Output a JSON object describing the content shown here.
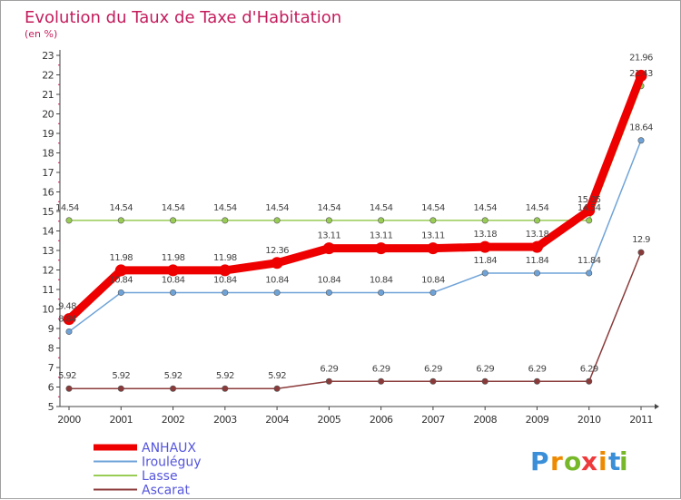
{
  "chart_data": {
    "type": "line",
    "title": "Evolution du Taux de Taxe d'Habitation",
    "subtitle": "(en %)",
    "xlabel": "",
    "ylabel": "",
    "ylim": [
      5,
      23
    ],
    "y_ticks": [
      "5",
      "6",
      "7",
      "8",
      "9",
      "10",
      "11",
      "12",
      "13",
      "14",
      "15",
      "16",
      "17",
      "18",
      "19",
      "20",
      "21",
      "22",
      "23"
    ],
    "categories": [
      "2000",
      "2001",
      "2002",
      "2003",
      "2004",
      "2005",
      "2006",
      "2007",
      "2008",
      "2009",
      "2010",
      "2011"
    ],
    "grid": false,
    "legend_position": "bottom-left",
    "series": [
      {
        "name": "ANHAUX",
        "color": "#ee0000",
        "values": [
          9.48,
          11.98,
          11.98,
          11.98,
          12.36,
          13.11,
          13.11,
          13.11,
          13.18,
          13.18,
          15.05,
          21.96
        ],
        "labels": [
          "9.48",
          "11.98",
          "11.98",
          "11.98",
          "12.36",
          "13.11",
          "13.11",
          "13.11",
          "13.18",
          "13.18",
          "15.05",
          "21.96"
        ]
      },
      {
        "name": "Irouléguy",
        "color": "#6fa3d8",
        "values": [
          8.84,
          10.84,
          10.84,
          10.84,
          10.84,
          10.84,
          10.84,
          10.84,
          11.84,
          11.84,
          11.84,
          18.64
        ],
        "labels": [
          "8.84",
          "10.84",
          "10.84",
          "10.84",
          "10.84",
          "10.84",
          "10.84",
          "10.84",
          "11.84",
          "11.84",
          "11.84",
          "18.64"
        ]
      },
      {
        "name": "Lasse",
        "color": "#99cc55",
        "values": [
          14.54,
          14.54,
          14.54,
          14.54,
          14.54,
          14.54,
          14.54,
          14.54,
          14.54,
          14.54,
          14.54,
          21.43
        ],
        "labels": [
          "14.54",
          "14.54",
          "14.54",
          "14.54",
          "14.54",
          "14.54",
          "14.54",
          "14.54",
          "14.54",
          "14.54",
          "14.54",
          "21.43"
        ]
      },
      {
        "name": "Ascarat",
        "color": "#8b3a3a",
        "values": [
          5.92,
          5.92,
          5.92,
          5.92,
          5.92,
          6.29,
          6.29,
          6.29,
          6.29,
          6.29,
          6.29,
          12.9
        ],
        "labels": [
          "5.92",
          "5.92",
          "5.92",
          "5.92",
          "5.92",
          "6.29",
          "6.29",
          "6.29",
          "6.29",
          "6.29",
          "6.29",
          "12.9"
        ]
      }
    ]
  },
  "logo": {
    "letters": [
      "P",
      "r",
      "o",
      "x",
      "i",
      "t",
      "i"
    ],
    "colors": [
      "#3a8fd8",
      "#ee8a00",
      "#77b82a",
      "#ee3a3a",
      "#ee8a00",
      "#3a8fd8",
      "#77b82a"
    ]
  }
}
